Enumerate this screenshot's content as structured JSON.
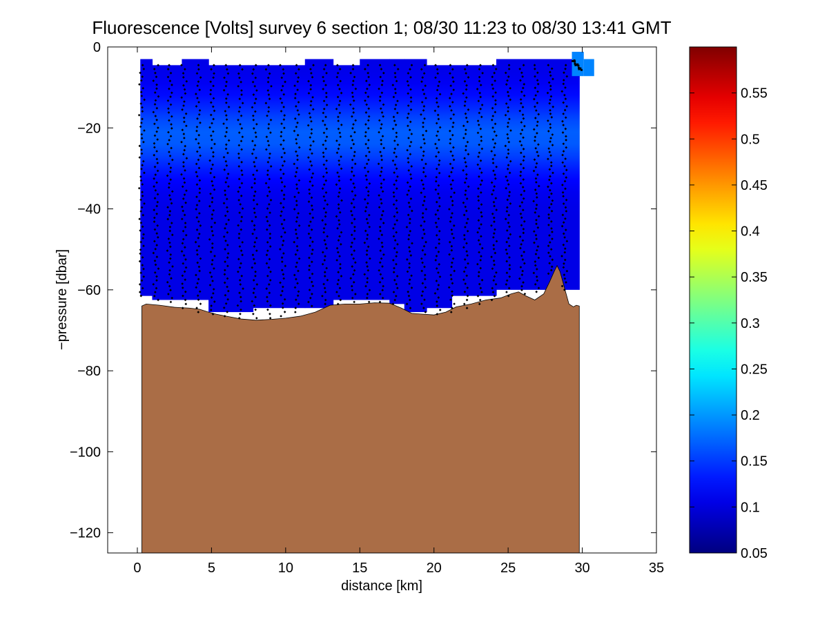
{
  "chart_data": {
    "type": "heatmap",
    "title": "Fluorescence [Volts] survey 6 section 1; 08/30 11:23 to 08/30 13:41 GMT",
    "xlabel": "distance [km]",
    "ylabel": "−pressure [dbar]",
    "xlim": [
      -2,
      35
    ],
    "ylim": [
      -125,
      0
    ],
    "xticks": [
      0,
      5,
      10,
      15,
      20,
      25,
      30,
      35
    ],
    "yticks": [
      0,
      -20,
      -40,
      -60,
      -80,
      -100,
      -120
    ],
    "xtick_labels": [
      "0",
      "5",
      "10",
      "15",
      "20",
      "25",
      "30",
      "35"
    ],
    "ytick_labels": [
      "0",
      "−20",
      "−40",
      "−60",
      "−80",
      "−100",
      "−120"
    ],
    "colorbar": {
      "colormap": "jet",
      "range": [
        0.05,
        0.6
      ],
      "ticks": [
        0.05,
        0.1,
        0.15,
        0.2,
        0.25,
        0.3,
        0.35,
        0.4,
        0.45,
        0.5,
        0.55
      ],
      "tick_labels": [
        "0.05",
        "0.1",
        "0.15",
        "0.2",
        "0.25",
        "0.3",
        "0.35",
        "0.4",
        "0.45",
        "0.5",
        "0.55"
      ]
    },
    "field": {
      "background_value": 0.105,
      "max_value": 0.17,
      "peak_depth": -22,
      "x_start": 0.2,
      "x_end": 30.8,
      "columns": [
        {
          "x0": 0.2,
          "x1": 1.0,
          "top": -3,
          "bottom": -61.5
        },
        {
          "x0": 1.0,
          "x1": 3.0,
          "top": -4.5,
          "bottom": -62.5
        },
        {
          "x0": 3.0,
          "x1": 4.8,
          "top": -3,
          "bottom": -62.5
        },
        {
          "x0": 4.8,
          "x1": 7.8,
          "top": -4.5,
          "bottom": -65.5
        },
        {
          "x0": 7.8,
          "x1": 11.3,
          "top": -4.5,
          "bottom": -64.5
        },
        {
          "x0": 11.3,
          "x1": 13.2,
          "top": -3,
          "bottom": -64.5
        },
        {
          "x0": 13.2,
          "x1": 15.0,
          "top": -4.5,
          "bottom": -62.5
        },
        {
          "x0": 15.0,
          "x1": 17.0,
          "top": -3,
          "bottom": -62.5
        },
        {
          "x0": 17.0,
          "x1": 18.0,
          "top": -3,
          "bottom": -63.5
        },
        {
          "x0": 18.0,
          "x1": 19.5,
          "top": -3,
          "bottom": -65.5
        },
        {
          "x0": 19.5,
          "x1": 21.2,
          "top": -4.5,
          "bottom": -64.5
        },
        {
          "x0": 21.2,
          "x1": 24.2,
          "top": -4.5,
          "bottom": -61.5
        },
        {
          "x0": 24.2,
          "x1": 29.8,
          "top": -3,
          "bottom": -60
        }
      ],
      "patches": [
        {
          "x0": 29.3,
          "x1": 30.1,
          "top": -1.2,
          "bottom": -7.2,
          "value": 0.19
        },
        {
          "x0": 30.1,
          "x1": 30.8,
          "top": -3,
          "bottom": -7.2,
          "value": 0.19
        }
      ]
    },
    "profiles": {
      "marker": "black dots",
      "x_start": 0.3,
      "count": 31,
      "spacing": 0.95,
      "top": -4.5,
      "bottoms": [
        -61.5,
        -62.5,
        -63,
        -64.5,
        -65.5,
        -66,
        -66.5,
        -67,
        -67,
        -67,
        -66.5,
        -65.5,
        -64,
        -63.5,
        -63.5,
        -63,
        -63,
        -63,
        -63.5,
        -64.5,
        -65.5,
        -66,
        -65.5,
        -64.5,
        -63.5,
        -62.5,
        -61.5,
        -61,
        -60.5,
        -56,
        -60
      ]
    },
    "seabed": {
      "color": "#aa6d46",
      "x": [
        0.3,
        0.6,
        1.5,
        2.5,
        3.5,
        4.2,
        4.8,
        5.3,
        6.0,
        7.0,
        8.0,
        9.0,
        10.0,
        11.0,
        12.0,
        13.0,
        14.0,
        15.0,
        16.0,
        17.0,
        17.8,
        18.5,
        19.2,
        20.0,
        20.8,
        21.5,
        22.5,
        23.5,
        24.5,
        25.2,
        25.7,
        26.2,
        26.8,
        27.4,
        27.8,
        28.1,
        28.3,
        28.5,
        28.8,
        29.1,
        29.4,
        29.6,
        29.8
      ],
      "depth": [
        -64,
        -63.5,
        -63.8,
        -64.3,
        -64.5,
        -64.8,
        -65.5,
        -66,
        -66.5,
        -67.2,
        -67.5,
        -67.3,
        -67,
        -66.5,
        -65.5,
        -63.8,
        -63.5,
        -63.5,
        -63.2,
        -63.3,
        -64.5,
        -65.8,
        -66,
        -66.2,
        -65.5,
        -64.2,
        -63.5,
        -62.5,
        -62,
        -61,
        -60.5,
        -61.5,
        -62.5,
        -61,
        -58,
        -55.5,
        -54,
        -55.5,
        -59.5,
        -63.5,
        -64.2,
        -63.8,
        -64
      ]
    }
  }
}
